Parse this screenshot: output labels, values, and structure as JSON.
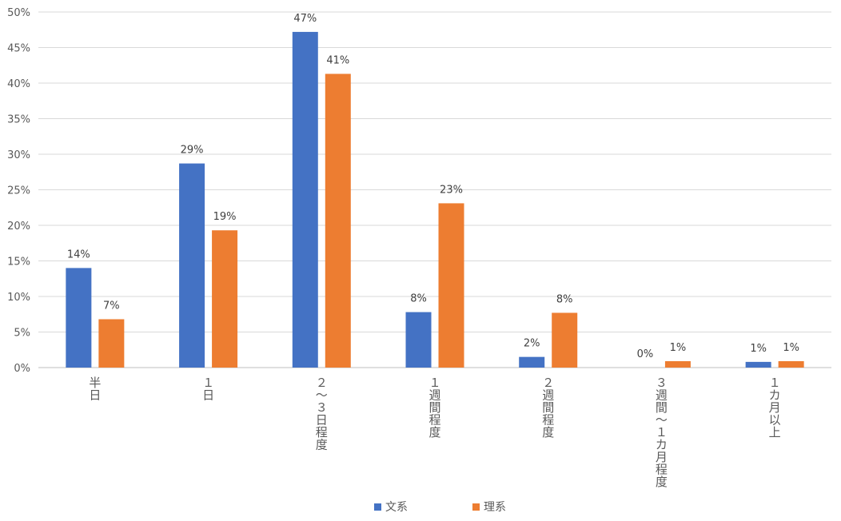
{
  "chart_data": {
    "type": "bar",
    "categories": [
      "半日",
      "１日",
      "２～３日程度",
      "１週間程度",
      "２週間程度",
      "３週間～１カ月程度",
      "１カ月以上"
    ],
    "series": [
      {
        "name": "文系",
        "color": "#4472C4",
        "values": [
          14,
          28.7,
          47.2,
          7.8,
          1.5,
          0,
          0.8
        ],
        "labels": [
          "14%",
          "29%",
          "47%",
          "8%",
          "2%",
          "0%",
          "1%"
        ]
      },
      {
        "name": "理系",
        "color": "#ED7D31",
        "values": [
          6.8,
          19.3,
          41.3,
          23.1,
          7.7,
          0.9,
          0.9
        ],
        "labels": [
          "7%",
          "19%",
          "41%",
          "23%",
          "8%",
          "1%",
          "1%"
        ]
      }
    ],
    "ylim": [
      0,
      50
    ],
    "yticks": [
      "0%",
      "5%",
      "10%",
      "15%",
      "20%",
      "25%",
      "30%",
      "35%",
      "40%",
      "45%",
      "50%"
    ],
    "grid": true,
    "legend": "bottom"
  }
}
